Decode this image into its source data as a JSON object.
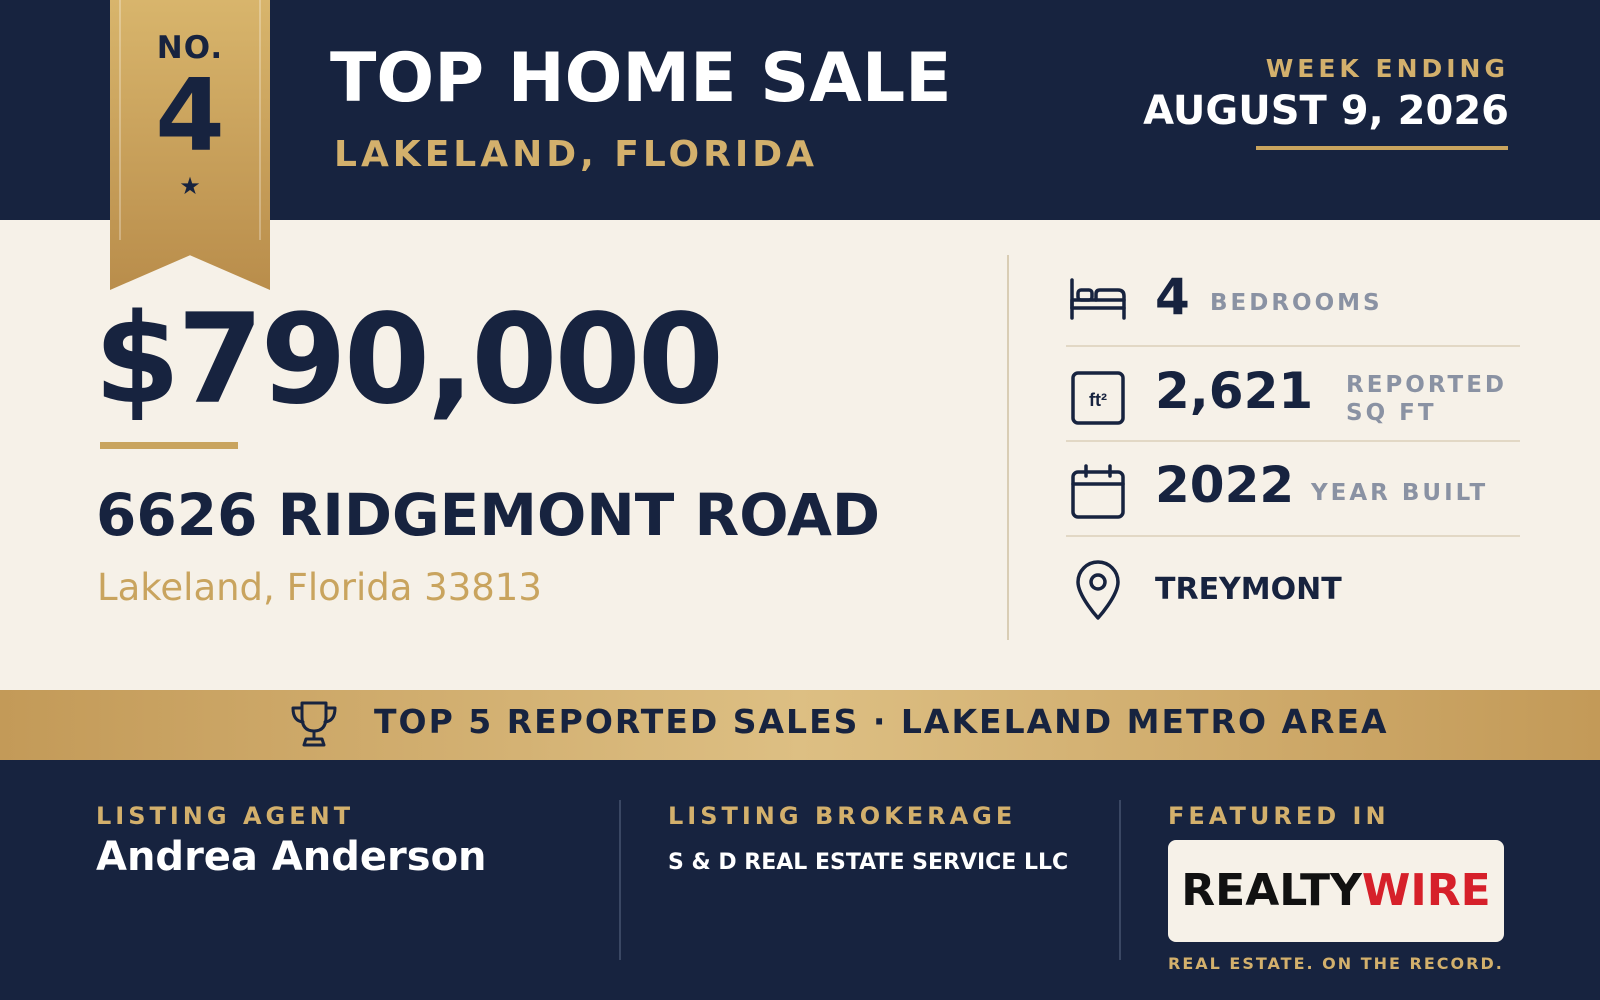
{
  "colors": {
    "navy": "#17233F",
    "cream": "#F6F1E8",
    "gold": "#C9A45E",
    "gray": "#8A92A3",
    "logo_red": "#D6202A"
  },
  "ribbon": {
    "prefix": "NO.",
    "rank": "4",
    "star": "★"
  },
  "header": {
    "title": "TOP HOME SALE",
    "subtitle": "LAKELAND, FLORIDA",
    "week_label": "WEEK ENDING",
    "week_date": "AUGUST 9, 2026"
  },
  "sale": {
    "price": "$790,000",
    "street": "6626 RIDGEMONT ROAD",
    "cityline": "Lakeland, Florida 33813"
  },
  "stats": [
    {
      "icon": "bed-icon",
      "value": "4",
      "label": "BEDROOMS"
    },
    {
      "icon": "sqft-icon",
      "icon_text": "ft²",
      "value": "2,621",
      "label_line1": "REPORTED",
      "label_line2": "SQ FT"
    },
    {
      "icon": "calendar-icon",
      "value": "2022",
      "label": "YEAR BUILT"
    },
    {
      "icon": "location-pin-icon",
      "value": "TREYMONT"
    }
  ],
  "banner": {
    "icon": "trophy-icon",
    "text": "TOP 5 REPORTED SALES · LAKELAND METRO AREA"
  },
  "footer": {
    "agent_label": "LISTING AGENT",
    "agent_name": "Andrea Anderson",
    "brokerage_label": "LISTING BROKERAGE",
    "brokerage_name": "S & D REAL ESTATE SERVICE LLC",
    "featured_label": "FEATURED IN",
    "logo_part1": "REALTY",
    "logo_part2": "WIRE",
    "tagline": "REAL ESTATE. ON THE RECORD."
  }
}
